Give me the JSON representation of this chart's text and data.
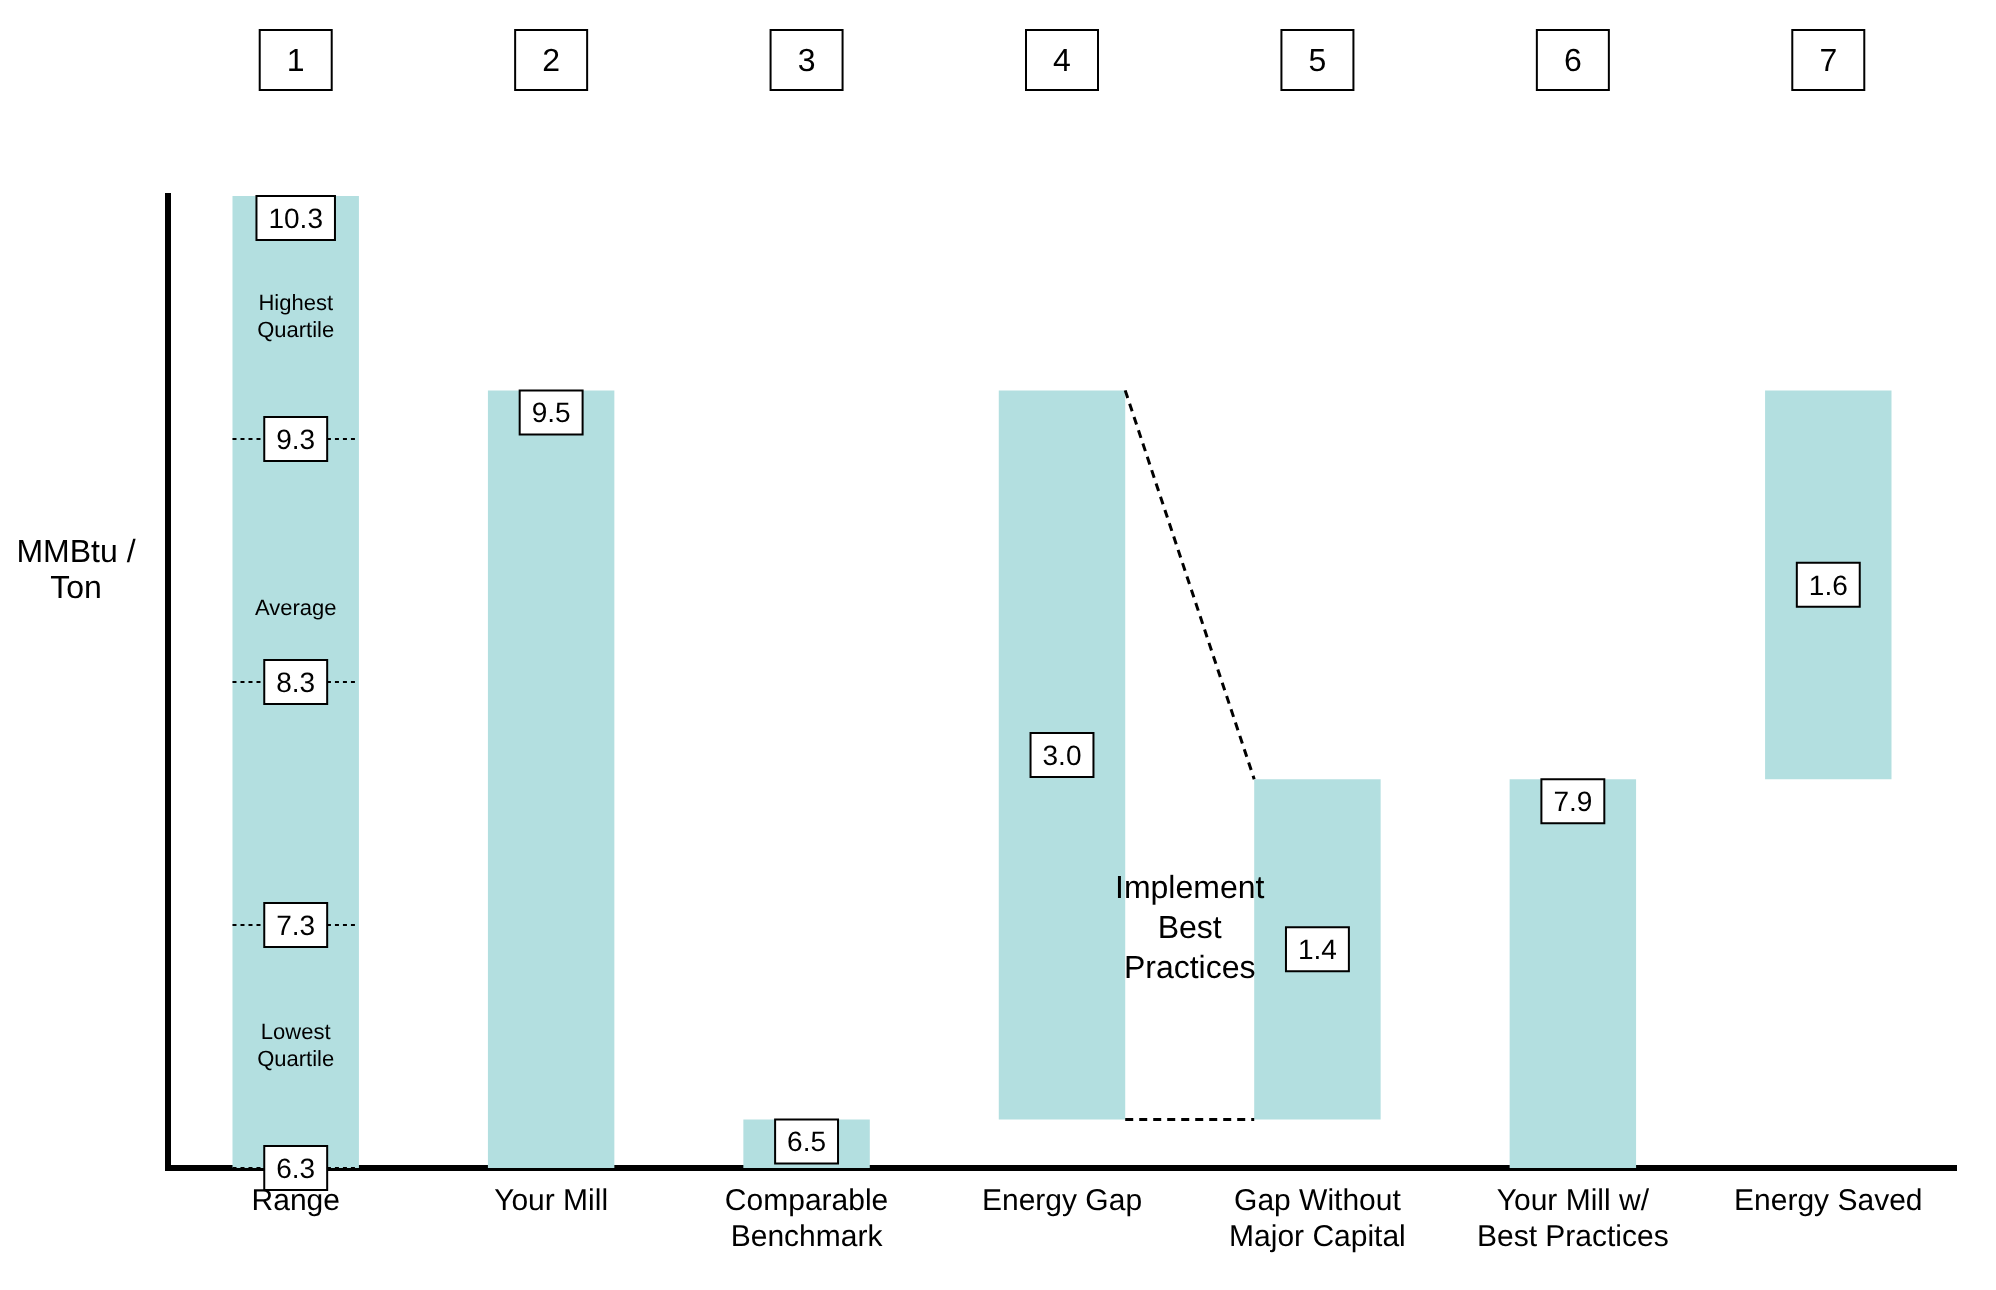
{
  "chart_data": {
    "type": "bar",
    "ylabel": "MMBtu / Ton",
    "categories": [
      "Range",
      "Your Mill",
      "Comparable Benchmark",
      "Energy Gap",
      "Gap Without Major Capital",
      "Your Mill w/ Best Practices",
      "Energy Saved"
    ],
    "values": [
      10.3,
      9.5,
      6.5,
      3.0,
      1.4,
      7.9,
      1.6
    ],
    "base": [
      null,
      null,
      null,
      6.5,
      6.5,
      null,
      7.9
    ],
    "value_labels": [
      "10.3",
      "9.5",
      "6.5",
      "3.0",
      "1.4",
      "7.9",
      "1.6"
    ],
    "color": "#b3dfe0",
    "ylim": [
      6.3,
      10.3
    ],
    "yticks": [
      6.3,
      7.3,
      8.3,
      9.3
    ],
    "grid": false,
    "legend": false,
    "annotations": [
      "1",
      "2",
      "3",
      "4",
      "5",
      "6",
      "7",
      "Highest Quartile",
      "Average",
      "Lowest Quartile",
      "Implement Best Practices"
    ]
  }
}
